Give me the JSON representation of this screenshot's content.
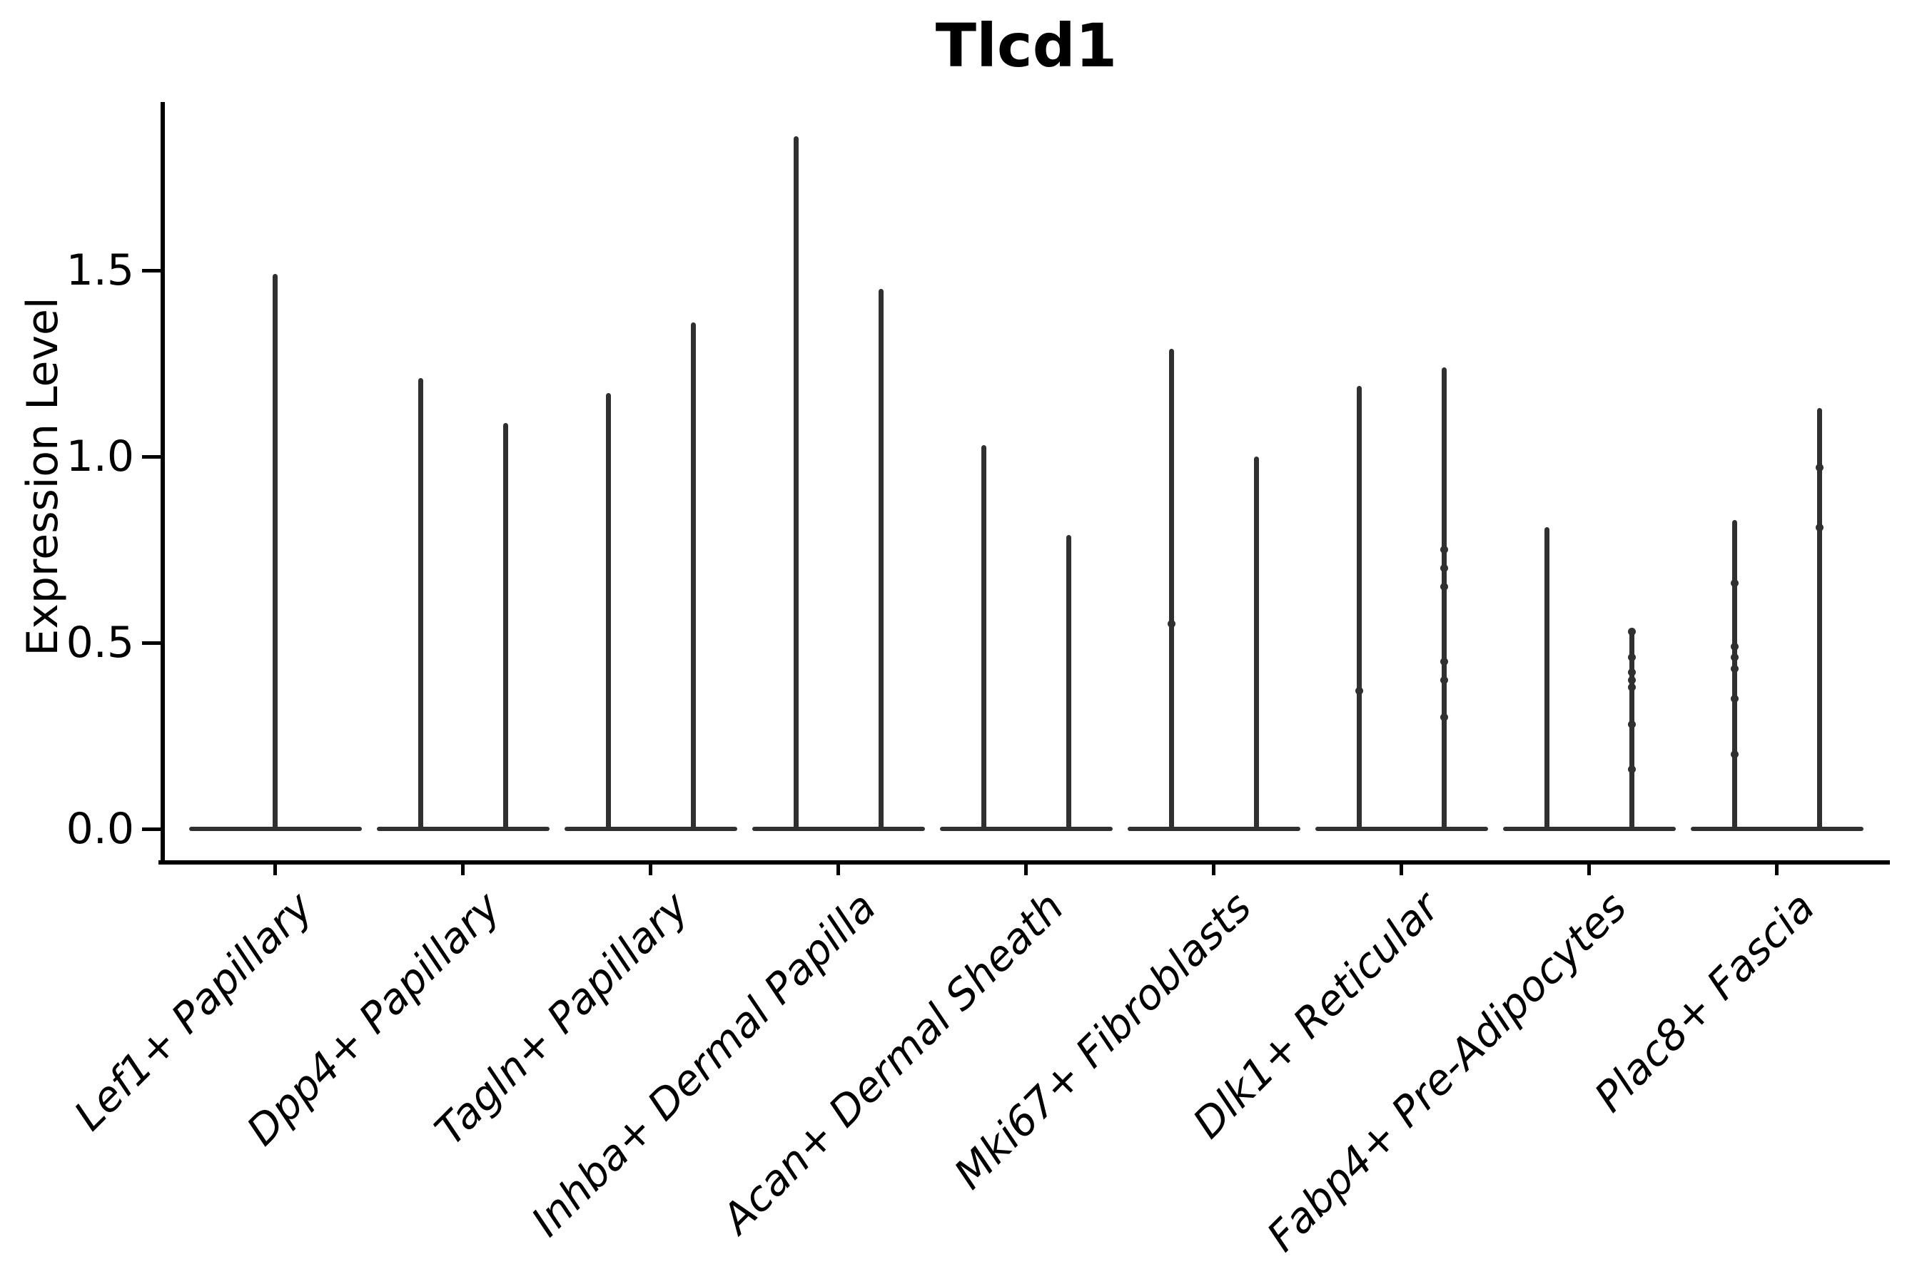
{
  "title": "Tlcd1",
  "y_axis_label": "Expression Level",
  "chart_data": {
    "type": "violin",
    "title": "Tlcd1",
    "xlabel": "",
    "ylabel": "Expression Level",
    "grid": false,
    "legend_position": "none",
    "ylim": [
      -0.09,
      1.95
    ],
    "yticks": [
      {
        "value": 0.0,
        "label": "0.0"
      },
      {
        "value": 0.5,
        "label": "0.5"
      },
      {
        "value": 1.0,
        "label": "1.0"
      },
      {
        "value": 1.5,
        "label": "1.5"
      }
    ],
    "categories": [
      "Lef1+ Papillary",
      "Dpp4+ Papillary",
      "Tagln+ Papillary",
      "Inhba+ Dermal Papilla",
      "Acan+ Dermal Sheath",
      "Mki67+ Fibroblasts",
      "Dlk1+ Reticular",
      "Fabp4+ Pre-Adipocytes",
      "Plac8+ Fascia"
    ],
    "description": "Violin plot of Tlcd1 expression; each group shows flat violin mass at 0 expression with thin spikes reaching the maximum expression value(s).",
    "groups": [
      {
        "category": "Lef1+ Papillary",
        "violins": [
          {
            "offset": 0,
            "max": 1.49,
            "jitter": []
          }
        ]
      },
      {
        "category": "Dpp4+ Papillary",
        "violins": [
          {
            "offset": -0.226,
            "max": 1.21,
            "jitter": []
          },
          {
            "offset": 0.226,
            "max": 1.09,
            "jitter": []
          }
        ]
      },
      {
        "category": "Tagln+ Papillary",
        "violins": [
          {
            "offset": -0.226,
            "max": 1.17,
            "jitter": []
          },
          {
            "offset": 0.226,
            "max": 1.36,
            "jitter": []
          }
        ]
      },
      {
        "category": "Inhba+ Dermal Papilla",
        "violins": [
          {
            "offset": -0.226,
            "max": 1.86,
            "jitter": []
          },
          {
            "offset": 0.226,
            "max": 1.45,
            "jitter": []
          }
        ]
      },
      {
        "category": "Acan+ Dermal Sheath",
        "violins": [
          {
            "offset": -0.226,
            "max": 1.03,
            "jitter": []
          },
          {
            "offset": 0.226,
            "max": 0.79,
            "jitter": []
          }
        ]
      },
      {
        "category": "Mki67+ Fibroblasts",
        "violins": [
          {
            "offset": -0.226,
            "max": 1.29,
            "jitter": [
              0.55
            ]
          },
          {
            "offset": 0.226,
            "max": 1.0,
            "jitter": []
          }
        ]
      },
      {
        "category": "Dlk1+ Reticular",
        "violins": [
          {
            "offset": -0.226,
            "max": 1.19,
            "jitter": [
              0.37
            ]
          },
          {
            "offset": 0.226,
            "max": 1.24,
            "jitter": [
              0.75,
              0.7,
              0.65,
              0.45,
              0.4,
              0.3
            ]
          }
        ]
      },
      {
        "category": "Fabp4+ Pre-Adipocytes",
        "violins": [
          {
            "offset": -0.226,
            "max": 0.81,
            "jitter": []
          },
          {
            "offset": 0.226,
            "max": 0.53,
            "jitter": [
              0.53,
              0.46,
              0.42,
              0.4,
              0.38,
              0.28,
              0.16
            ]
          }
        ]
      },
      {
        "category": "Plac8+ Fascia",
        "violins": [
          {
            "offset": -0.226,
            "max": 0.83,
            "jitter": [
              0.66,
              0.49,
              0.46,
              0.43,
              0.35,
              0.2
            ]
          },
          {
            "offset": 0.226,
            "max": 1.13,
            "jitter": [
              0.97,
              0.81
            ]
          }
        ]
      }
    ],
    "colors": {
      "violin": "#303030",
      "axis": "#000000",
      "text": "#000000",
      "background": "#ffffff"
    }
  }
}
